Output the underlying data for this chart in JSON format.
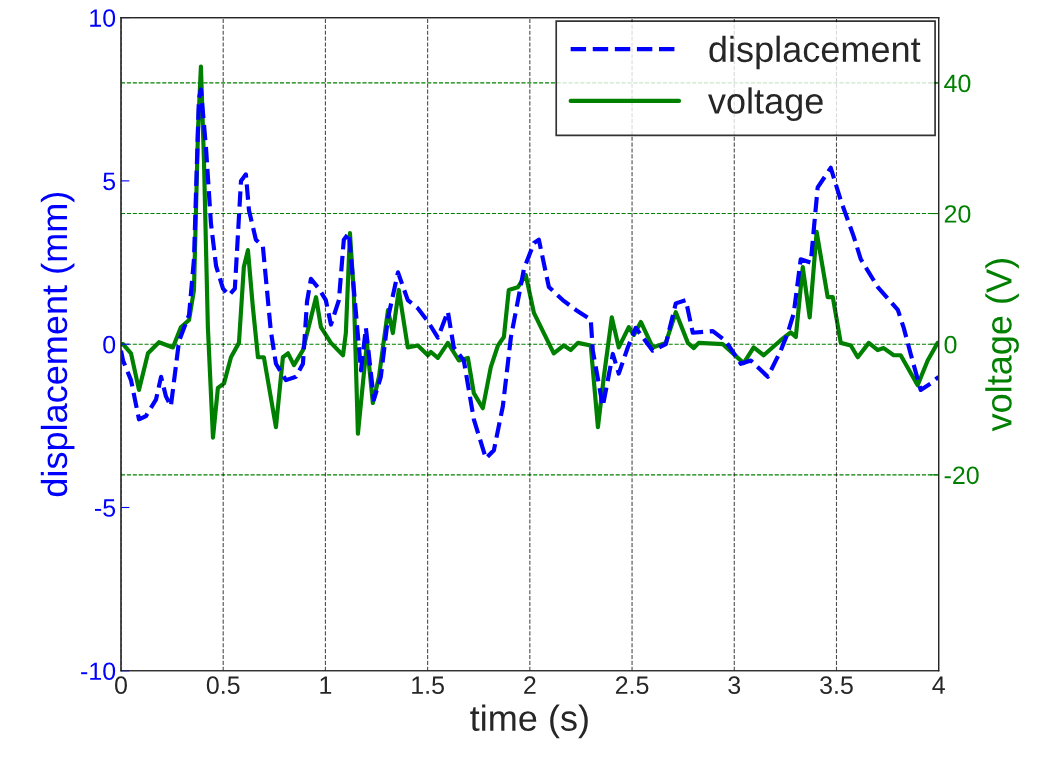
{
  "chart_data": {
    "type": "line",
    "xlabel": "time (s)",
    "ylabel": "displacement (mm)",
    "y2label": "voltage (V)",
    "xlim": [
      0,
      4
    ],
    "xticks": [
      0,
      0.5,
      1,
      1.5,
      2,
      2.5,
      3,
      3.5,
      4
    ],
    "ylim": [
      -10,
      10
    ],
    "yticks": [
      -10,
      -5,
      0,
      5,
      10
    ],
    "y2lim": [
      -50,
      50
    ],
    "y2ticks": [
      -20,
      0,
      20,
      40
    ],
    "grid": "x",
    "legend": "top right",
    "ref_lines": [
      {
        "axis": "y2",
        "value": -20,
        "color": "#008000",
        "line_style": "dashed"
      },
      {
        "axis": "y2",
        "value": 0,
        "color": "#008000",
        "line_style": "dashed"
      },
      {
        "axis": "y2",
        "value": 20,
        "color": "#008000",
        "line_style": "dashed"
      },
      {
        "axis": "y2",
        "value": 40,
        "color": "#008000",
        "line_style": "dashed"
      }
    ],
    "series": [
      {
        "name": "displacement",
        "color": "#0000ff",
        "line_style": "dashed",
        "x": [
          0.0,
          0.01,
          0.049,
          0.088,
          0.122,
          0.171,
          0.196,
          0.22,
          0.244,
          0.284,
          0.333,
          0.357,
          0.381,
          0.391,
          0.416,
          0.44,
          0.465,
          0.499,
          0.528,
          0.557,
          0.587,
          0.611,
          0.626,
          0.66,
          0.694,
          0.733,
          0.758,
          0.807,
          0.856,
          0.89,
          0.91,
          0.929,
          0.968,
          1.002,
          1.027,
          1.066,
          1.09,
          1.115,
          1.174,
          1.198,
          1.237,
          1.271,
          1.306,
          1.355,
          1.403,
          1.452,
          1.501,
          1.55,
          1.599,
          1.628,
          1.677,
          1.726,
          1.785,
          1.824,
          1.868,
          1.907,
          1.971,
          2.02,
          2.044,
          2.093,
          2.161,
          2.225,
          2.298,
          2.308,
          2.357,
          2.406,
          2.435,
          2.479,
          2.518,
          2.601,
          2.665,
          2.714,
          2.763,
          2.797,
          2.895,
          2.958,
          3.032,
          3.081,
          3.164,
          3.227,
          3.262,
          3.291,
          3.325,
          3.374,
          3.408,
          3.472,
          3.521,
          3.584,
          3.619,
          3.702,
          3.8,
          3.829,
          3.863,
          3.912,
          3.961,
          4.0
        ],
        "values": [
          -0.2,
          -0.5,
          -1.1,
          -2.3,
          -2.2,
          -1.7,
          -1.0,
          -1.6,
          -1.9,
          0.1,
          0.9,
          2.6,
          7.5,
          7.8,
          6.0,
          3.7,
          2.4,
          1.7,
          1.5,
          1.7,
          5.0,
          5.2,
          4.1,
          3.2,
          3.0,
          0.4,
          -0.6,
          -1.1,
          -1.0,
          -0.6,
          1.3,
          2.0,
          1.7,
          1.35,
          0.6,
          1.35,
          3.2,
          3.4,
          -0.8,
          0.5,
          -1.7,
          -1.0,
          0.8,
          2.2,
          1.35,
          1.1,
          0.7,
          0.2,
          1.0,
          -0.1,
          -0.5,
          -2.3,
          -3.5,
          -3.25,
          -1.9,
          0.2,
          2.3,
          3.1,
          3.2,
          1.75,
          1.35,
          1.05,
          0.75,
          -0.2,
          -1.9,
          -0.3,
          -0.9,
          -0.1,
          0.5,
          -0.2,
          0.0,
          1.25,
          1.35,
          0.35,
          0.4,
          0.1,
          -0.6,
          -0.5,
          -1.0,
          -0.2,
          0.35,
          0.95,
          2.6,
          2.5,
          4.8,
          5.4,
          4.4,
          3.3,
          2.6,
          1.75,
          1.05,
          0.5,
          -0.3,
          -1.4,
          -1.2,
          -1.0
        ]
      },
      {
        "name": "voltage",
        "color": "#008000",
        "line_style": "solid",
        "axis": "y2",
        "x": [
          0.0,
          0.01,
          0.049,
          0.088,
          0.132,
          0.186,
          0.254,
          0.293,
          0.333,
          0.357,
          0.377,
          0.391,
          0.406,
          0.425,
          0.45,
          0.474,
          0.504,
          0.538,
          0.577,
          0.601,
          0.621,
          0.645,
          0.67,
          0.699,
          0.758,
          0.792,
          0.817,
          0.846,
          0.89,
          0.954,
          0.978,
          1.027,
          1.086,
          1.1,
          1.12,
          1.139,
          1.159,
          1.203,
          1.232,
          1.262,
          1.306,
          1.33,
          1.359,
          1.403,
          1.452,
          1.501,
          1.516,
          1.55,
          1.599,
          1.653,
          1.697,
          1.726,
          1.77,
          1.809,
          1.844,
          1.873,
          1.897,
          1.941,
          1.98,
          2.02,
          2.054,
          2.117,
          2.166,
          2.2,
          2.235,
          2.298,
          2.333,
          2.362,
          2.401,
          2.435,
          2.484,
          2.509,
          2.543,
          2.601,
          2.665,
          2.714,
          2.773,
          2.802,
          2.826,
          2.944,
          3.046,
          3.095,
          3.144,
          3.227,
          3.276,
          3.301,
          3.335,
          3.369,
          3.403,
          3.457,
          3.482,
          3.521,
          3.57,
          3.604,
          3.658,
          3.702,
          3.731,
          3.78,
          3.814,
          3.897,
          3.946,
          3.995
        ],
        "values": [
          0.0,
          0.0,
          -1.4,
          -7,
          -1.4,
          0.3,
          -0.5,
          2.6,
          3.7,
          8.3,
          33,
          42.5,
          28,
          2.6,
          -14.3,
          -6.7,
          -6,
          -2,
          0.2,
          11.8,
          14.4,
          5.7,
          -2,
          -2,
          -12.7,
          -2,
          -1.4,
          -3.2,
          -0.9,
          7.2,
          2.6,
          0.2,
          -1.7,
          1.7,
          17,
          7.8,
          -13.7,
          0.2,
          -9,
          -5,
          5.2,
          1.7,
          8.3,
          -0.5,
          -0.2,
          -1.7,
          -1.2,
          -2.1,
          0.2,
          -2.5,
          -2.1,
          -7.5,
          -9.8,
          -3.5,
          -0.2,
          1.1,
          8.3,
          8.7,
          10.6,
          4.8,
          2.6,
          -1.4,
          -0.2,
          -0.9,
          0.2,
          -0.2,
          -12.7,
          -5,
          4.1,
          -0.5,
          2.6,
          1.4,
          3.4,
          -0.5,
          0.2,
          4.9,
          0.2,
          -0.6,
          0.2,
          0,
          -2.9,
          -0.5,
          -1.7,
          0.6,
          1.8,
          1.1,
          11.8,
          4.1,
          17.2,
          7.2,
          7.2,
          0.2,
          -0.2,
          -2,
          0.2,
          -0.9,
          -0.6,
          -1.7,
          -1.7,
          -6.3,
          -2.5,
          0.2
        ]
      }
    ]
  }
}
